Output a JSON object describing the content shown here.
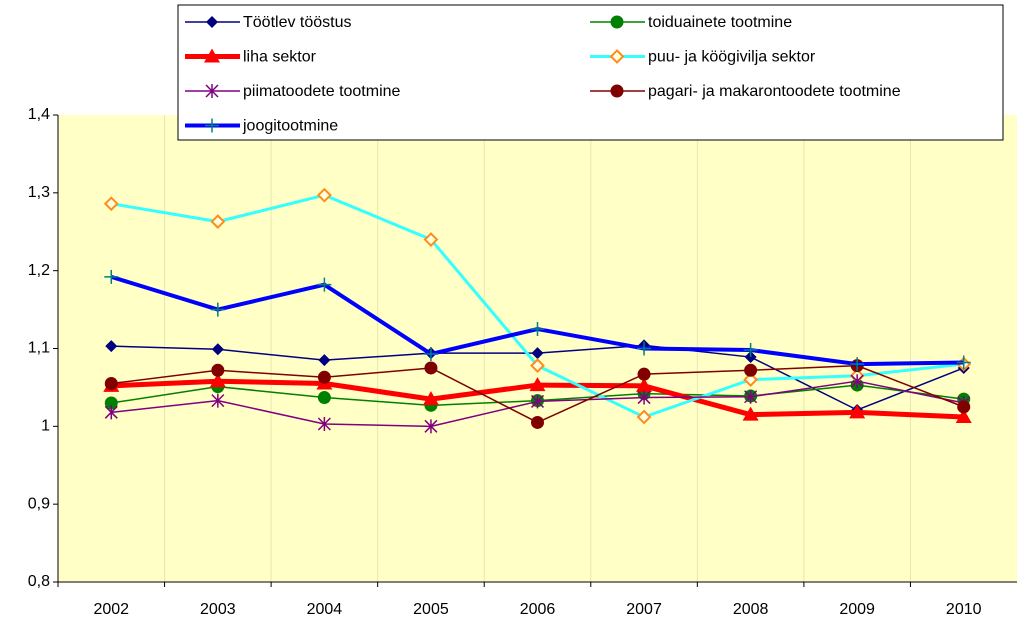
{
  "chart_data": {
    "type": "line",
    "categories": [
      "2002",
      "2003",
      "2004",
      "2005",
      "2006",
      "2007",
      "2008",
      "2009",
      "2010"
    ],
    "ylim": [
      0.8,
      1.4
    ],
    "yticks": [
      {
        "value": 0.8,
        "label": "0,8"
      },
      {
        "value": 0.9,
        "label": "0,9"
      },
      1,
      {
        "value": 1.1,
        "label": "1,1"
      },
      {
        "value": 1.2,
        "label": "1,2"
      },
      {
        "value": 1.3,
        "label": "1,3"
      },
      {
        "value": 1.4,
        "label": "1,4"
      }
    ],
    "grid": true,
    "background": "#ffffc6",
    "legend": "top",
    "series": [
      {
        "name": "Töötlev tööstus",
        "color": "#000080",
        "marker": "diamond",
        "line_width": 1.5,
        "values": [
          1.103,
          1.099,
          1.085,
          1.094,
          1.094,
          1.104,
          1.089,
          1.021,
          1.075
        ]
      },
      {
        "name": "toiduainete tootmine",
        "color": "#008000",
        "marker": "circle",
        "line_width": 1.5,
        "values": [
          1.03,
          1.051,
          1.037,
          1.027,
          1.033,
          1.042,
          1.039,
          1.053,
          1.035
        ]
      },
      {
        "name": "liha sektor",
        "color": "#ff0000",
        "marker": "triangle",
        "line_width": 5,
        "values": [
          1.052,
          1.058,
          1.055,
          1.035,
          1.053,
          1.052,
          1.015,
          1.018,
          1.012
        ]
      },
      {
        "name": "puu- ja köögivilja sektor",
        "color": "#33ffff",
        "marker_color": "#ff8c1a",
        "marker": "open-diamond",
        "line_width": 3,
        "values": [
          1.286,
          1.263,
          1.297,
          1.24,
          1.078,
          1.012,
          1.06,
          1.065,
          1.08
        ]
      },
      {
        "name": "piimatoodete tootmine",
        "color": "#800080",
        "marker": "star",
        "line_width": 1.5,
        "values": [
          1.018,
          1.033,
          1.003,
          1.0,
          1.032,
          1.037,
          1.038,
          1.058,
          1.03
        ]
      },
      {
        "name": "pagari- ja makarontoodete tootmine",
        "color": "#800000",
        "marker": "circle",
        "line_width": 1.5,
        "values": [
          1.055,
          1.072,
          1.063,
          1.075,
          1.005,
          1.067,
          1.072,
          1.078,
          1.025
        ]
      },
      {
        "name": "joogitootmine",
        "color": "#0000ff",
        "marker_color": "#008080",
        "marker": "plus",
        "line_width": 4,
        "values": [
          1.192,
          1.15,
          1.182,
          1.093,
          1.125,
          1.1,
          1.098,
          1.08,
          1.082
        ]
      }
    ]
  }
}
